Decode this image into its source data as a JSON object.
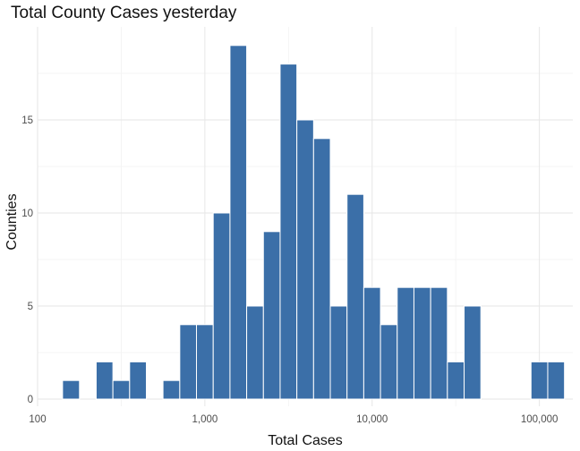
{
  "chart_data": {
    "type": "bar",
    "title": "Total County Cases yesterday",
    "xlabel": "Total Cases",
    "ylabel": "Counties",
    "x_scale": "log10",
    "xlim": [
      100,
      158489
    ],
    "ylim": [
      0,
      19
    ],
    "x_ticks": [
      {
        "value": 100,
        "label": "100"
      },
      {
        "value": 1000,
        "label": "1,000"
      },
      {
        "value": 10000,
        "label": "10,000"
      },
      {
        "value": 100000,
        "label": "100,000"
      }
    ],
    "y_ticks": [
      {
        "value": 0,
        "label": "0"
      },
      {
        "value": 5,
        "label": "5"
      },
      {
        "value": 10,
        "label": "10"
      },
      {
        "value": 15,
        "label": "15"
      }
    ],
    "bin_edges": [
      141,
      178,
      224,
      282,
      355,
      447,
      562,
      708,
      891,
      1122,
      1413,
      1778,
      2239,
      2818,
      3548,
      4467,
      5623,
      7079,
      8913,
      11220,
      14125,
      17783,
      22387,
      28184,
      35481,
      44668,
      56234,
      70795,
      89125,
      112202,
      141254
    ],
    "values": [
      1,
      0,
      2,
      1,
      2,
      0,
      1,
      4,
      4,
      10,
      19,
      5,
      9,
      18,
      15,
      14,
      5,
      11,
      6,
      4,
      6,
      6,
      6,
      2,
      5,
      0,
      0,
      0,
      2,
      2
    ],
    "bar_color": "#3b6fa8",
    "grid": true,
    "legend": "none"
  }
}
